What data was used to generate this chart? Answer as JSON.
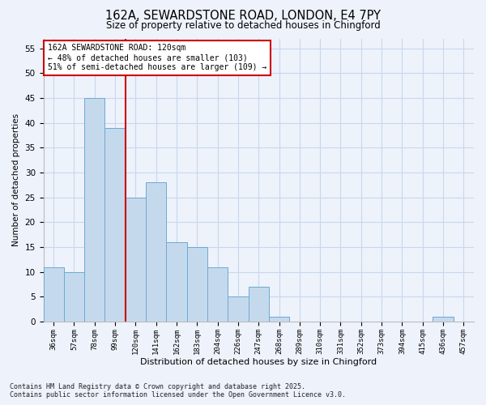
{
  "title_line1": "162A, SEWARDSTONE ROAD, LONDON, E4 7PY",
  "title_line2": "Size of property relative to detached houses in Chingford",
  "xlabel": "Distribution of detached houses by size in Chingford",
  "ylabel": "Number of detached properties",
  "bar_labels": [
    "36sqm",
    "57sqm",
    "78sqm",
    "99sqm",
    "120sqm",
    "141sqm",
    "162sqm",
    "183sqm",
    "204sqm",
    "226sqm",
    "247sqm",
    "268sqm",
    "289sqm",
    "310sqm",
    "331sqm",
    "352sqm",
    "373sqm",
    "394sqm",
    "415sqm",
    "436sqm",
    "457sqm"
  ],
  "bar_values": [
    11,
    10,
    45,
    39,
    25,
    28,
    16,
    15,
    11,
    5,
    7,
    1,
    0,
    0,
    0,
    0,
    0,
    0,
    0,
    1,
    0
  ],
  "bar_color": "#c5d9ed",
  "bar_edge_color": "#6aaad4",
  "vline_color": "#cc0000",
  "annotation_text": "162A SEWARDSTONE ROAD: 120sqm\n← 48% of detached houses are smaller (103)\n51% of semi-detached houses are larger (109) →",
  "ylim": [
    0,
    57
  ],
  "yticks": [
    0,
    5,
    10,
    15,
    20,
    25,
    30,
    35,
    40,
    45,
    50,
    55
  ],
  "grid_color": "#c8d8ec",
  "background_color": "#eef2fb",
  "footer_line1": "Contains HM Land Registry data © Crown copyright and database right 2025.",
  "footer_line2": "Contains public sector information licensed under the Open Government Licence v3.0."
}
